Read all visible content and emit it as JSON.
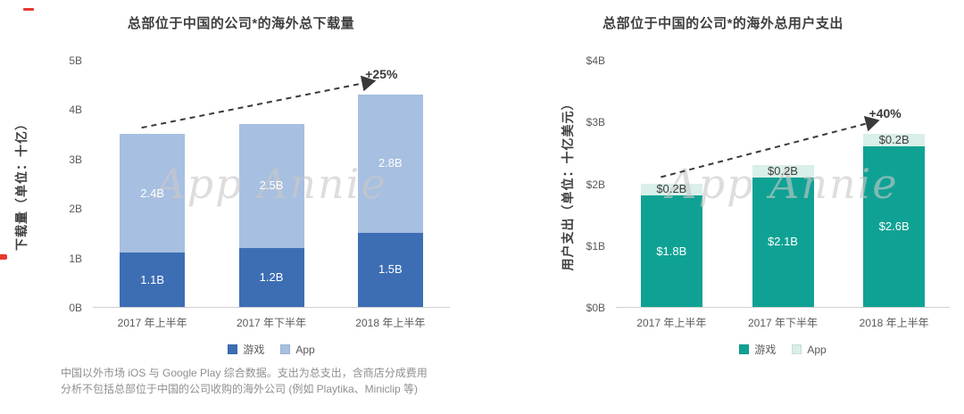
{
  "page": {
    "watermark": "App Annie",
    "footnote_line1": "中国以外市场 iOS 与 Google Play 综合数据。支出为总支出，含商店分成费用",
    "footnote_line2": "分析不包括总部位于中国的公司收购的海外公司 (例如 Playtika、Miniclip 等)"
  },
  "chart_data": [
    {
      "type": "bar",
      "stacked": true,
      "title": "总部位于中国的公司*的海外总下载量",
      "ylabel": "下载量（单位：十亿）",
      "categories": [
        "2017 年上半年",
        "2017 年下半年",
        "2018 年上半年"
      ],
      "series": [
        {
          "name": "游戏",
          "color": "#3d6eb4",
          "values": [
            1.1,
            1.2,
            1.5
          ],
          "labels": [
            "1.1B",
            "1.2B",
            "1.5B"
          ],
          "label_color": "#ffffff"
        },
        {
          "name": "App",
          "color": "#a7bfe0",
          "values": [
            2.4,
            2.5,
            2.8
          ],
          "labels": [
            "2.4B",
            "2.5B",
            "2.8B"
          ],
          "label_color": "#ffffff"
        }
      ],
      "ylim": [
        0,
        5
      ],
      "yticks": [
        "0B",
        "1B",
        "2B",
        "3B",
        "4B",
        "5B"
      ],
      "annotation": "+25%",
      "grid": false,
      "legend_position": "bottom"
    },
    {
      "type": "bar",
      "stacked": true,
      "title": "总部位于中国的公司*的海外总用户支出",
      "ylabel": "用户支出（单位：十亿美元）",
      "categories": [
        "2017 年上半年",
        "2017 年下半年",
        "2018 年上半年"
      ],
      "series": [
        {
          "name": "游戏",
          "color": "#0fa294",
          "values": [
            1.8,
            2.1,
            2.6
          ],
          "labels": [
            "$1.8B",
            "$2.1B",
            "$2.6B"
          ],
          "label_color": "#ffffff"
        },
        {
          "name": "App",
          "color": "#d9efe9",
          "values": [
            0.2,
            0.2,
            0.2
          ],
          "labels": [
            "$0.2B",
            "$0.2B",
            "$0.2B"
          ],
          "label_color": "#3f3f3f"
        }
      ],
      "ylim": [
        0,
        4
      ],
      "yticks": [
        "$0B",
        "$1B",
        "$2B",
        "$3B",
        "$4B"
      ],
      "annotation": "+40%",
      "grid": false,
      "legend_position": "bottom"
    }
  ]
}
